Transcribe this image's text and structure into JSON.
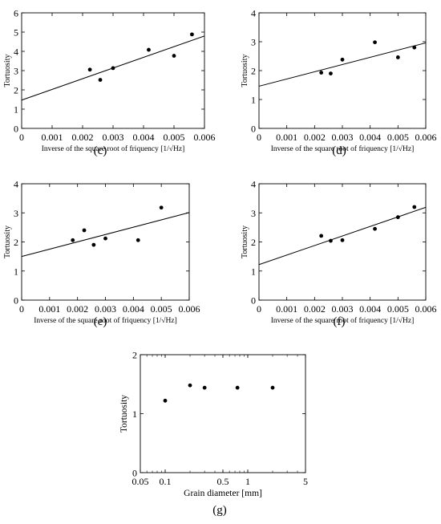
{
  "chart_data": [
    {
      "panel": "(c)",
      "type": "scatter",
      "xlabel": "Inverse of the square root of friquency [1/√Hz]",
      "ylabel": "Tortuosity",
      "xlim": [
        0,
        0.006
      ],
      "ylim": [
        0,
        6
      ],
      "xticks": [
        "0",
        "0.001",
        "0.002",
        "0.003",
        "0.004",
        "0.005",
        "0.006"
      ],
      "yticks": [
        "0",
        "1",
        "2",
        "3",
        "4",
        "5",
        "6"
      ],
      "grid": false,
      "points": [
        {
          "x": 0.00224,
          "y": 3.05
        },
        {
          "x": 0.00258,
          "y": 2.52
        },
        {
          "x": 0.003,
          "y": 3.13
        },
        {
          "x": 0.00417,
          "y": 4.08
        },
        {
          "x": 0.005,
          "y": 3.77
        },
        {
          "x": 0.00559,
          "y": 4.88
        }
      ],
      "fit_line": {
        "x": [
          0,
          0.006
        ],
        "y": [
          1.47,
          4.8
        ]
      }
    },
    {
      "panel": "(d)",
      "type": "scatter",
      "xlabel": "Inverse of the square root of friquency [1/√Hz]",
      "ylabel": "Tortuosity",
      "xlim": [
        0,
        0.006
      ],
      "ylim": [
        0,
        4
      ],
      "xticks": [
        "0",
        "0.001",
        "0.002",
        "0.003",
        "0.004",
        "0.005",
        "0.006"
      ],
      "yticks": [
        "0",
        "1",
        "2",
        "3",
        "4"
      ],
      "grid": false,
      "points": [
        {
          "x": 0.00224,
          "y": 1.93
        },
        {
          "x": 0.00258,
          "y": 1.9
        },
        {
          "x": 0.003,
          "y": 2.38
        },
        {
          "x": 0.00417,
          "y": 2.98
        },
        {
          "x": 0.005,
          "y": 2.46
        },
        {
          "x": 0.00559,
          "y": 2.8
        }
      ],
      "fit_line": {
        "x": [
          0,
          0.006
        ],
        "y": [
          1.46,
          2.96
        ]
      }
    },
    {
      "panel": "(e)",
      "type": "scatter",
      "xlabel": "Inverse of the square root of friquency [1/√Hz]",
      "ylabel": "Tortuosity",
      "xlim": [
        0,
        0.006
      ],
      "ylim": [
        0,
        4
      ],
      "xticks": [
        "0",
        "0.001",
        "0.002",
        "0.003",
        "0.004",
        "0.005",
        "0.006"
      ],
      "yticks": [
        "0",
        "1",
        "2",
        "3",
        "4"
      ],
      "grid": false,
      "points": [
        {
          "x": 0.00183,
          "y": 2.06
        },
        {
          "x": 0.00224,
          "y": 2.4
        },
        {
          "x": 0.00258,
          "y": 1.9
        },
        {
          "x": 0.003,
          "y": 2.12
        },
        {
          "x": 0.00417,
          "y": 2.06
        },
        {
          "x": 0.005,
          "y": 3.18
        }
      ],
      "fit_line": {
        "x": [
          0,
          0.006
        ],
        "y": [
          1.5,
          3.01
        ]
      }
    },
    {
      "panel": "(f)",
      "type": "scatter",
      "xlabel": "Inverse of the square root of friquency [1/√Hz]",
      "ylabel": "Tortuosity",
      "xlim": [
        0,
        0.006
      ],
      "ylim": [
        0,
        4
      ],
      "xticks": [
        "0",
        "0.001",
        "0.002",
        "0.003",
        "0.004",
        "0.005",
        "0.006"
      ],
      "yticks": [
        "0",
        "1",
        "2",
        "3",
        "4"
      ],
      "grid": false,
      "points": [
        {
          "x": 0.00224,
          "y": 2.21
        },
        {
          "x": 0.00258,
          "y": 2.04
        },
        {
          "x": 0.003,
          "y": 2.06
        },
        {
          "x": 0.00417,
          "y": 2.45
        },
        {
          "x": 0.005,
          "y": 2.85
        },
        {
          "x": 0.00559,
          "y": 3.2
        }
      ],
      "fit_line": {
        "x": [
          0,
          0.006
        ],
        "y": [
          1.22,
          3.19
        ]
      }
    },
    {
      "panel": "(g)",
      "type": "scatter",
      "xlabel": "Grain diameter [mm]",
      "ylabel": "Tortuosity",
      "xscale": "log",
      "xlim": [
        0.05,
        5
      ],
      "ylim": [
        0,
        2
      ],
      "xticks": [
        "0.05",
        "0.1",
        "0.5",
        "1",
        "5"
      ],
      "xtick_values": [
        0.05,
        0.1,
        0.5,
        1,
        5
      ],
      "yticks": [
        "0",
        "1",
        "2"
      ],
      "grid": false,
      "points": [
        {
          "x": 0.1,
          "y": 1.22
        },
        {
          "x": 0.2,
          "y": 1.48
        },
        {
          "x": 0.3,
          "y": 1.44
        },
        {
          "x": 0.75,
          "y": 1.44
        },
        {
          "x": 2.0,
          "y": 1.44
        }
      ]
    }
  ]
}
